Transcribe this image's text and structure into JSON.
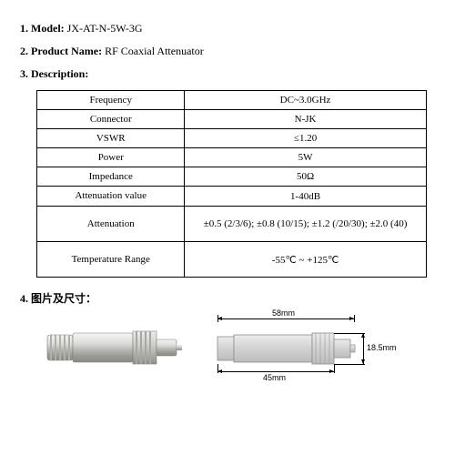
{
  "sections": {
    "s1": {
      "num": "1.",
      "label": "Model:",
      "value": "JX-AT-N-5W-3G"
    },
    "s2": {
      "num": "2.",
      "label": "Product Name:",
      "value": "RF Coaxial Attenuator"
    },
    "s3": {
      "num": "3.",
      "label": "Description:",
      "value": ""
    },
    "s4": {
      "num": "4.",
      "label": "图片及尺寸：",
      "value": ""
    }
  },
  "spec_table": {
    "rows": [
      {
        "param": "Frequency",
        "value": "DC~3.0GHz"
      },
      {
        "param": "Connector",
        "value": "N-JK"
      },
      {
        "param": "VSWR",
        "value": "≤1.20"
      },
      {
        "param": "Power",
        "value": "5W"
      },
      {
        "param": "Impedance",
        "value": "50Ω"
      },
      {
        "param": "Attenuation value",
        "value": "1-40dB"
      },
      {
        "param": "Attenuation",
        "value": "±0.5 (2/3/6); ±0.8 (10/15); ±1.2 (/20/30); ±2.0 (40)"
      },
      {
        "param": "Temperature Range",
        "value": "-55℃ ~ +125℃"
      }
    ],
    "border_color": "#000000",
    "cell_fontsize": 11
  },
  "drawing": {
    "overall_length_mm": "58mm",
    "body_length_mm": "45mm",
    "diameter_mm": "18.5mm",
    "colors": {
      "dim_line": "#000000",
      "body_fill_light": "#e6e6e6",
      "body_fill_mid": "#cfcfcf",
      "body_fill_dark": "#b8b8b8",
      "outline": "#9a9a9a"
    }
  },
  "photo": {
    "colors": {
      "metal_light": "#f2f2f0",
      "metal_mid": "#d0d0cc",
      "metal_dark": "#9e9e98",
      "shadow": "#787874"
    }
  }
}
